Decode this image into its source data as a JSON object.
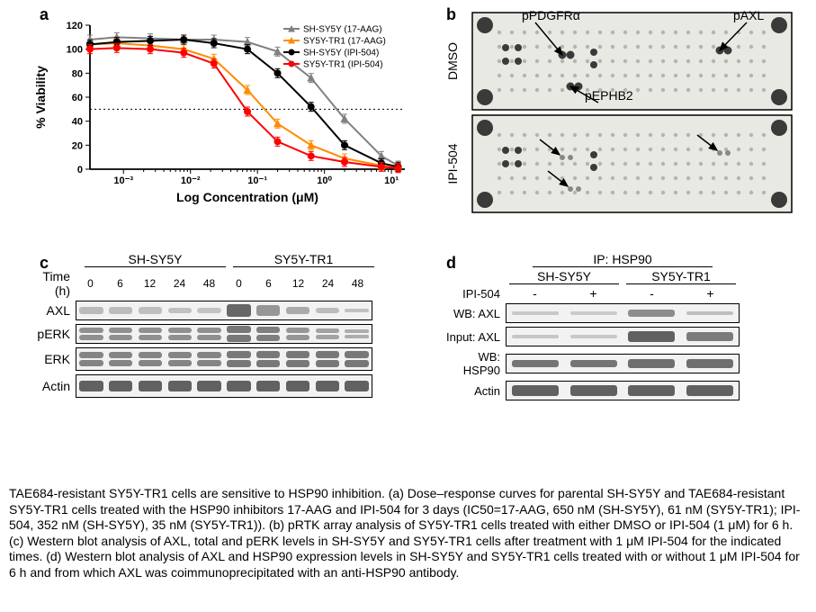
{
  "panels": {
    "a": "a",
    "b": "b",
    "c": "c",
    "d": "d"
  },
  "a": {
    "title_x": "Log Concentration (μM)",
    "title_y": "% Viability",
    "xlim": [
      -3.5,
      1.2
    ],
    "ylim": [
      0,
      120
    ],
    "yticks": [
      0,
      20,
      40,
      60,
      80,
      100,
      120
    ],
    "xtick_labels": [
      "10⁻³",
      "10⁻²",
      "10⁻¹",
      "10⁰",
      "10¹"
    ],
    "xtick_logpos": [
      -3,
      -2,
      -1,
      0,
      1
    ],
    "ref_line_y": 50,
    "label_fontsize": 14,
    "tick_fontsize": 11,
    "legend_fontsize": 10,
    "background_color": "#ffffff",
    "axis_color": "#000000",
    "series": [
      {
        "name": "SH-SY5Y (17-AAG)",
        "color": "#808080",
        "marker": "triangle",
        "x": [
          -3.5,
          -3.1,
          -2.6,
          -2.1,
          -1.65,
          -1.15,
          -0.7,
          -0.2,
          0.3,
          0.85,
          1.1
        ],
        "y": [
          108,
          110,
          109,
          108,
          108,
          106,
          98,
          76,
          42,
          11,
          3
        ]
      },
      {
        "name": "SY5Y-TR1 (17-AAG)",
        "color": "#ff8c00",
        "marker": "triangle",
        "x": [
          -3.5,
          -3.1,
          -2.6,
          -2.1,
          -1.65,
          -1.15,
          -0.7,
          -0.2,
          0.3,
          0.85,
          1.1
        ],
        "y": [
          104,
          105,
          103,
          100,
          92,
          66,
          38,
          20,
          9,
          3,
          1
        ]
      },
      {
        "name": "SH-SY5Y (IPI-504)",
        "color": "#000000",
        "marker": "circle",
        "x": [
          -3.5,
          -3.1,
          -2.6,
          -2.1,
          -1.65,
          -1.15,
          -0.7,
          -0.2,
          0.3,
          0.85,
          1.1
        ],
        "y": [
          104,
          106,
          107,
          108,
          105,
          100,
          80,
          52,
          20,
          5,
          2
        ]
      },
      {
        "name": "SY5Y-TR1 (IPI-504)",
        "color": "#ff0000",
        "marker": "circle",
        "x": [
          -3.5,
          -3.1,
          -2.6,
          -2.1,
          -1.65,
          -1.15,
          -0.7,
          -0.2,
          0.3,
          0.85,
          1.1
        ],
        "y": [
          100,
          101,
          100,
          97,
          88,
          48,
          23,
          11,
          6,
          2,
          1
        ]
      }
    ]
  },
  "b": {
    "rows": [
      "DMSO",
      "IPI-504"
    ],
    "annotations": [
      {
        "text": "pPDGFRα",
        "arrow_to": [
          135,
          53
        ],
        "label_at": [
          90,
          14
        ]
      },
      {
        "text": "pAXL",
        "arrow_to": [
          310,
          48
        ],
        "label_at": [
          325,
          14
        ]
      },
      {
        "text": "pEPHB2",
        "arrow_to": [
          144,
          88
        ],
        "label_at": [
          160,
          103
        ]
      }
    ],
    "bg_color": "#e9e9e4",
    "dot_color_dark": "#3a3a3a",
    "dot_color_light": "#b5b5b0",
    "font_size": 14
  },
  "c": {
    "groups": [
      "SH-SY5Y",
      "SY5Y-TR1"
    ],
    "time_label": "Time (h)",
    "times": [
      "0",
      "6",
      "12",
      "24",
      "48",
      "0",
      "6",
      "12",
      "24",
      "48"
    ],
    "rows": [
      {
        "label": "AXL",
        "intensities": [
          0.15,
          0.12,
          0.1,
          0.08,
          0.07,
          0.85,
          0.45,
          0.28,
          0.12,
          0.08
        ],
        "h": [
          0.55,
          0.5,
          0.45,
          0.4,
          0.35,
          0.9,
          0.7,
          0.55,
          0.4,
          0.3
        ]
      },
      {
        "label": "pERK",
        "intensities": [
          0.5,
          0.5,
          0.5,
          0.5,
          0.5,
          0.7,
          0.65,
          0.45,
          0.35,
          0.25
        ],
        "h": [
          0.35,
          0.35,
          0.35,
          0.35,
          0.35,
          0.5,
          0.45,
          0.4,
          0.3,
          0.25
        ],
        "double": true
      },
      {
        "label": "ERK",
        "intensities": [
          0.6,
          0.6,
          0.6,
          0.6,
          0.6,
          0.7,
          0.7,
          0.7,
          0.7,
          0.7
        ],
        "h": [
          0.45,
          0.45,
          0.45,
          0.45,
          0.45,
          0.5,
          0.5,
          0.5,
          0.5,
          0.5
        ],
        "double": true
      },
      {
        "label": "Actin",
        "intensities": [
          0.9,
          0.9,
          0.9,
          0.9,
          0.9,
          0.9,
          0.9,
          0.9,
          0.9,
          0.9
        ],
        "h": [
          0.7,
          0.7,
          0.7,
          0.7,
          0.7,
          0.7,
          0.7,
          0.7,
          0.7,
          0.7
        ]
      }
    ],
    "band_color": "#444444",
    "border_color": "#000000"
  },
  "d": {
    "ip_label": "IP: HSP90",
    "groups": [
      "SH-SY5Y",
      "SY5Y-TR1"
    ],
    "treat_label": "IPI-504",
    "treatments": [
      "-",
      "+",
      "-",
      "+"
    ],
    "rows": [
      {
        "label": "WB: AXL",
        "intensities": [
          0.08,
          0.06,
          0.55,
          0.15
        ],
        "h": [
          0.3,
          0.25,
          0.55,
          0.3
        ]
      },
      {
        "label": "Input: AXL",
        "intensities": [
          0.1,
          0.08,
          0.9,
          0.7
        ],
        "h": [
          0.3,
          0.28,
          0.75,
          0.6
        ]
      },
      {
        "label": "WB: HSP90",
        "intensities": [
          0.75,
          0.75,
          0.8,
          0.8
        ],
        "h": [
          0.55,
          0.55,
          0.6,
          0.6
        ]
      },
      {
        "label": "Actin",
        "intensities": [
          0.9,
          0.9,
          0.9,
          0.9
        ],
        "h": [
          0.7,
          0.7,
          0.7,
          0.7
        ]
      }
    ]
  },
  "caption": "TAE684-resistant SY5Y-TR1 cells are sensitive to HSP90 inhibition. (a) Dose–response curves for parental SH-SY5Y and TAE684-resistant SY5Y-TR1 cells treated with the HSP90 inhibitors 17-AAG and IPI-504 for 3 days (IC50=17-AAG, 650 nM (SH-SY5Y), 61 nM (SY5Y-TR1); IPI-504, 352 nM (SH-SY5Y), 35 nM (SY5Y-TR1)). (b) pRTK array analysis of SY5Y-TR1 cells treated with either DMSO or IPI-504 (1 μM) for 6 h. (c) Western blot analysis of AXL, total and pERK levels in SH-SY5Y and SY5Y-TR1 cells after treatment with 1 μM IPI-504 for the indicated times. (d) Western blot analysis of AXL and HSP90 expression levels in SH-SY5Y and SY5Y-TR1 cells treated with or without 1 μM IPI-504 for 6 h and from which AXL was coimmunoprecipitated with an anti-HSP90 antibody."
}
